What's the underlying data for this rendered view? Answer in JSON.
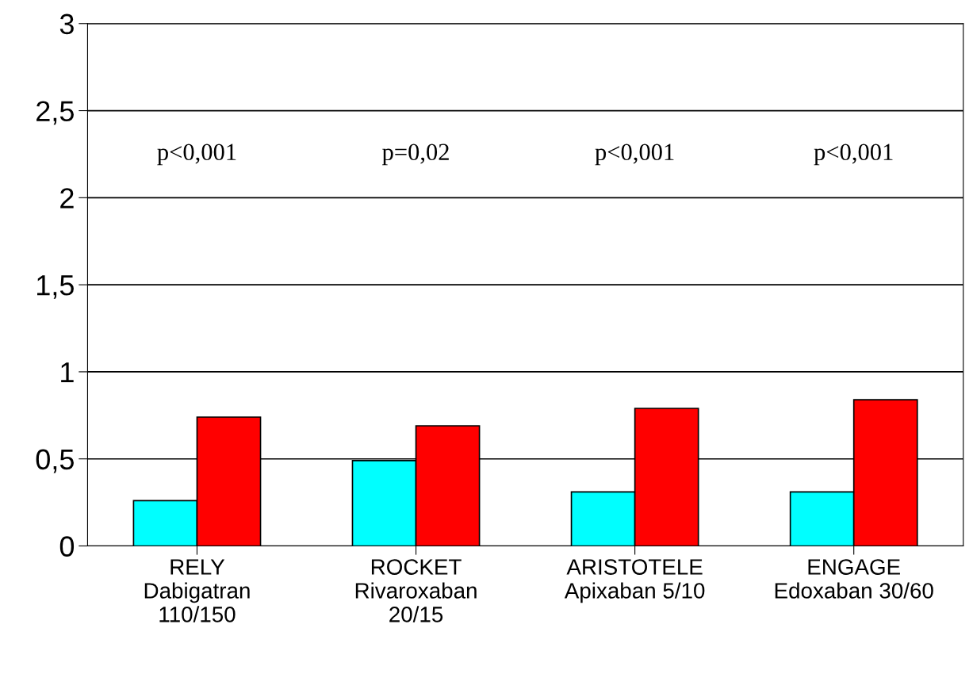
{
  "chart_data": {
    "type": "bar",
    "categories": [
      "RELY\nDabigatran\n110/150",
      "ROCKET\nRivaroxaban\n20/15",
      "ARISTOTELE\nApixaban 5/10",
      "ENGAGE\nEdoxaban 30/60"
    ],
    "series": [
      {
        "color": "#00ffff",
        "values": [
          0.26,
          0.49,
          0.31,
          0.31
        ]
      },
      {
        "color": "#ff0000",
        "values": [
          0.74,
          0.69,
          0.79,
          0.84
        ]
      }
    ],
    "ylim": [
      0,
      3
    ],
    "yticks": [
      0,
      {
        "value": 0.5,
        "label": "0,5"
      },
      1,
      {
        "value": 1.5,
        "label": "1,5"
      },
      2,
      {
        "value": 2.5,
        "label": "2,5"
      },
      3
    ],
    "grid": "y",
    "annotations": [
      "p<0,001",
      "p=0,02",
      "p<0,001",
      "p<0,001"
    ]
  }
}
